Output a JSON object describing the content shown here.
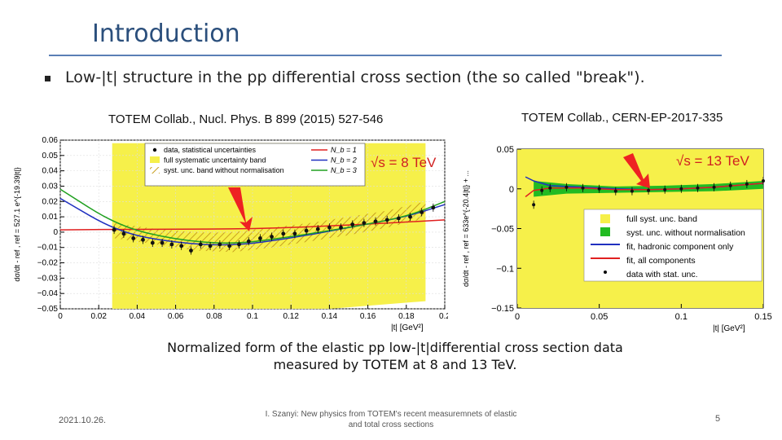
{
  "slide": {
    "title": "Introduction",
    "bullet": "Low-|t| structure in the pp differential cross section (the so called \"break\").",
    "caption": "Normalized form of the elastic pp low-|t|differential cross section data measured by TOTEM at 8 and 13 TeV.",
    "footer_date": "2021.10.26.",
    "footer_center": "I. Szanyi: New physics from TOTEM's recent measuremnets of elastic and total cross sections",
    "page_number": "5"
  },
  "left_plot": {
    "citation": "TOTEM Collab., Nucl. Phys. B 899 (2015) 527-546",
    "energy_label": "√s = 8 TeV",
    "ylabel": "dσ/dt - ref   ,  ref = 527.1 e^{-19.39|t|}",
    "xlabel": "|t|  [GeV²]",
    "legend": [
      "data, statistical uncertainties",
      "full systematic uncertainty band",
      "syst. unc. band without normalisation",
      "N_b = 1",
      "N_b = 2",
      "N_b = 3"
    ],
    "colors": {
      "band": "#f6f04a",
      "hatch": "#c8a020",
      "nb1": "#e02020",
      "nb2": "#2030c0",
      "nb3": "#20a020",
      "data": "#111111"
    }
  },
  "right_plot": {
    "citation": "TOTEM Collab., CERN-EP-2017-335",
    "energy_label": "√s = 13 TeV",
    "ylabel": "dσ/dt - ref   ,  ref = 633e^{-20.4|t|} + ...",
    "xlabel": "|t|  [GeV²]",
    "legend": [
      "full syst. unc. band",
      "syst. unc. without normalisation",
      "fit, hadronic component only",
      "fit, all components",
      "data with stat. unc."
    ],
    "colors": {
      "band": "#f6f04a",
      "band2": "#22bb22",
      "hadronic": "#2030c0",
      "all": "#e02020",
      "data": "#111111"
    }
  },
  "chart_data": [
    {
      "type": "scatter",
      "title": "TOTEM Collab., Nucl. Phys. B 899 (2015) 527-546",
      "xlabel": "|t|  [GeV²]",
      "ylabel": "dσ/dt - ref",
      "xlim": [
        0,
        0.2
      ],
      "ylim": [
        -0.05,
        0.06
      ],
      "xticks": [
        "0",
        "0.02",
        "0.04",
        "0.06",
        "0.08",
        "0.1",
        "0.12",
        "0.14",
        "0.16",
        "0.18",
        "0.2"
      ],
      "yticks": [
        "0.06",
        "0.05",
        "0.04",
        "0.03",
        "0.02",
        "0.01",
        "0",
        "−0.01",
        "−0.02",
        "−0.03",
        "−0.04",
        "−0.05"
      ],
      "series": [
        {
          "name": "data, statistical uncertainties",
          "x": [
            0.028,
            0.033,
            0.038,
            0.043,
            0.048,
            0.053,
            0.058,
            0.063,
            0.068,
            0.073,
            0.078,
            0.083,
            0.088,
            0.093,
            0.098,
            0.104,
            0.11,
            0.116,
            0.122,
            0.128,
            0.134,
            0.14,
            0.146,
            0.152,
            0.158,
            0.164,
            0.17,
            0.176,
            0.182,
            0.188,
            0.194
          ],
          "y": [
            0.0015,
            -0.001,
            -0.004,
            -0.005,
            -0.007,
            -0.007,
            -0.008,
            -0.009,
            -0.012,
            -0.008,
            -0.009,
            -0.008,
            -0.009,
            -0.008,
            -0.006,
            -0.004,
            -0.003,
            -0.001,
            -0.001,
            0.001,
            0.002,
            0.003,
            0.003,
            0.005,
            0.006,
            0.007,
            0.008,
            0.009,
            0.01,
            0.013,
            0.016
          ]
        },
        {
          "name": "N_b = 1",
          "x": [
            0,
            0.05,
            0.1,
            0.15,
            0.2
          ],
          "y": [
            0.0015,
            0.002,
            0.002,
            0.0045,
            0.008
          ]
        },
        {
          "name": "N_b = 2",
          "x": [
            0,
            0.03,
            0.06,
            0.09,
            0.12,
            0.15,
            0.18,
            0.2
          ],
          "y": [
            0.022,
            0.0,
            -0.007,
            -0.009,
            -0.004,
            0.003,
            0.01,
            0.018
          ]
        },
        {
          "name": "N_b = 3",
          "x": [
            0,
            0.03,
            0.06,
            0.09,
            0.12,
            0.15,
            0.18,
            0.2
          ],
          "y": [
            0.028,
            0.004,
            -0.005,
            -0.008,
            -0.003,
            0.003,
            0.01,
            0.02
          ]
        }
      ]
    },
    {
      "type": "scatter",
      "title": "TOTEM Collab., CERN-EP-2017-335",
      "xlabel": "|t|  [GeV²]",
      "ylabel": "dσ/dt - ref",
      "xlim": [
        0,
        0.15
      ],
      "ylim": [
        -0.15,
        0.05
      ],
      "xticks": [
        "0",
        "0.05",
        "0.1",
        "0.15"
      ],
      "yticks": [
        "0.05",
        "0",
        "−0.05",
        "−0.1",
        "−0.15"
      ],
      "series": [
        {
          "name": "data with stat. unc.",
          "x": [
            0.01,
            0.015,
            0.02,
            0.03,
            0.04,
            0.05,
            0.06,
            0.07,
            0.08,
            0.09,
            0.1,
            0.11,
            0.12,
            0.13,
            0.14,
            0.15
          ],
          "y": [
            -0.02,
            -0.002,
            0.001,
            0.002,
            0.001,
            0.0,
            -0.003,
            -0.003,
            -0.002,
            -0.001,
            0.0,
            0.001,
            0.002,
            0.004,
            0.006,
            0.01
          ]
        },
        {
          "name": "fit, hadronic component only",
          "x": [
            0.005,
            0.01,
            0.02,
            0.04,
            0.06,
            0.08,
            0.1,
            0.12,
            0.15
          ],
          "y": [
            0.015,
            0.01,
            0.004,
            0.002,
            0.0,
            -0.001,
            0.0,
            0.002,
            0.007
          ]
        },
        {
          "name": "fit, all components",
          "x": [
            0.005,
            0.01,
            0.02,
            0.04,
            0.06,
            0.08,
            0.1,
            0.12,
            0.15
          ],
          "y": [
            -0.01,
            -0.002,
            0.001,
            0.001,
            -0.001,
            -0.001,
            0.0,
            0.002,
            0.007
          ]
        }
      ]
    }
  ]
}
